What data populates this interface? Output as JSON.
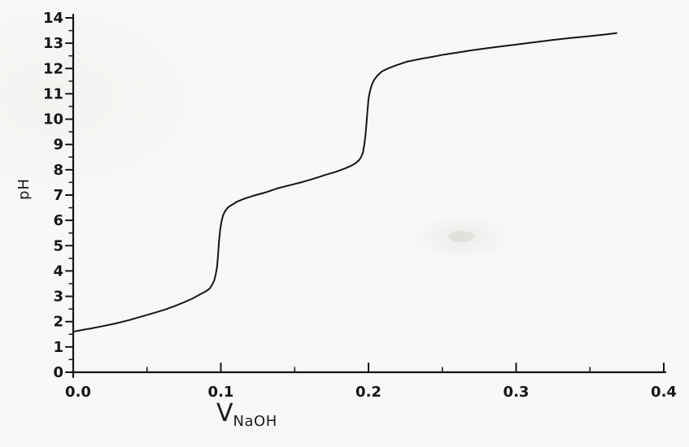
{
  "page": {
    "background": "#f8f8f6",
    "ink": "#1b1b1b"
  },
  "chart_data": {
    "type": "line",
    "title": "",
    "ylabel": "pH",
    "xlabel_main": "V",
    "xlabel_sub": "NaOH",
    "xlim": [
      0.0,
      0.4
    ],
    "ylim": [
      0,
      14
    ],
    "grid": false,
    "legend": null,
    "x_major_ticks": [
      0.0,
      0.1,
      0.2,
      0.3,
      0.4
    ],
    "x_tick_labels": [
      "0.0",
      "0.1",
      "0.2",
      "0.3",
      "0.4"
    ],
    "x_minor_step": 0.05,
    "y_major_step": 1,
    "y_minor_step": 0.5,
    "y_tick_labels": [
      "0",
      "1",
      "2",
      "3",
      "4",
      "5",
      "6",
      "7",
      "8",
      "9",
      "10",
      "11",
      "12",
      "13",
      "14"
    ],
    "series": [
      {
        "name": "titration_curve",
        "points": [
          [
            0.0,
            1.6
          ],
          [
            0.006,
            1.67
          ],
          [
            0.012,
            1.73
          ],
          [
            0.02,
            1.82
          ],
          [
            0.029,
            1.93
          ],
          [
            0.038,
            2.06
          ],
          [
            0.045,
            2.18
          ],
          [
            0.054,
            2.33
          ],
          [
            0.062,
            2.47
          ],
          [
            0.069,
            2.62
          ],
          [
            0.075,
            2.76
          ],
          [
            0.081,
            2.92
          ],
          [
            0.086,
            3.08
          ],
          [
            0.09,
            3.2
          ],
          [
            0.0925,
            3.31
          ],
          [
            0.094,
            3.45
          ],
          [
            0.0955,
            3.62
          ],
          [
            0.0965,
            3.85
          ],
          [
            0.0975,
            4.2
          ],
          [
            0.0982,
            4.7
          ],
          [
            0.0988,
            5.2
          ],
          [
            0.0995,
            5.62
          ],
          [
            0.1005,
            5.97
          ],
          [
            0.1015,
            6.2
          ],
          [
            0.103,
            6.38
          ],
          [
            0.105,
            6.52
          ],
          [
            0.108,
            6.63
          ],
          [
            0.111,
            6.74
          ],
          [
            0.116,
            6.86
          ],
          [
            0.122,
            6.97
          ],
          [
            0.13,
            7.1
          ],
          [
            0.138,
            7.26
          ],
          [
            0.146,
            7.38
          ],
          [
            0.155,
            7.51
          ],
          [
            0.163,
            7.65
          ],
          [
            0.171,
            7.8
          ],
          [
            0.178,
            7.92
          ],
          [
            0.184,
            8.05
          ],
          [
            0.188,
            8.15
          ],
          [
            0.191,
            8.25
          ],
          [
            0.1935,
            8.37
          ],
          [
            0.195,
            8.5
          ],
          [
            0.1963,
            8.7
          ],
          [
            0.1972,
            9.0
          ],
          [
            0.198,
            9.4
          ],
          [
            0.1987,
            9.85
          ],
          [
            0.1993,
            10.3
          ],
          [
            0.2,
            10.8
          ],
          [
            0.201,
            11.1
          ],
          [
            0.2022,
            11.35
          ],
          [
            0.2038,
            11.55
          ],
          [
            0.206,
            11.72
          ],
          [
            0.209,
            11.88
          ],
          [
            0.213,
            12.0
          ],
          [
            0.219,
            12.13
          ],
          [
            0.226,
            12.27
          ],
          [
            0.235,
            12.38
          ],
          [
            0.243,
            12.46
          ],
          [
            0.251,
            12.55
          ],
          [
            0.259,
            12.62
          ],
          [
            0.27,
            12.72
          ],
          [
            0.281,
            12.81
          ],
          [
            0.292,
            12.89
          ],
          [
            0.303,
            12.97
          ],
          [
            0.314,
            13.05
          ],
          [
            0.325,
            13.13
          ],
          [
            0.336,
            13.2
          ],
          [
            0.347,
            13.26
          ],
          [
            0.358,
            13.33
          ],
          [
            0.368,
            13.4
          ]
        ]
      }
    ]
  }
}
